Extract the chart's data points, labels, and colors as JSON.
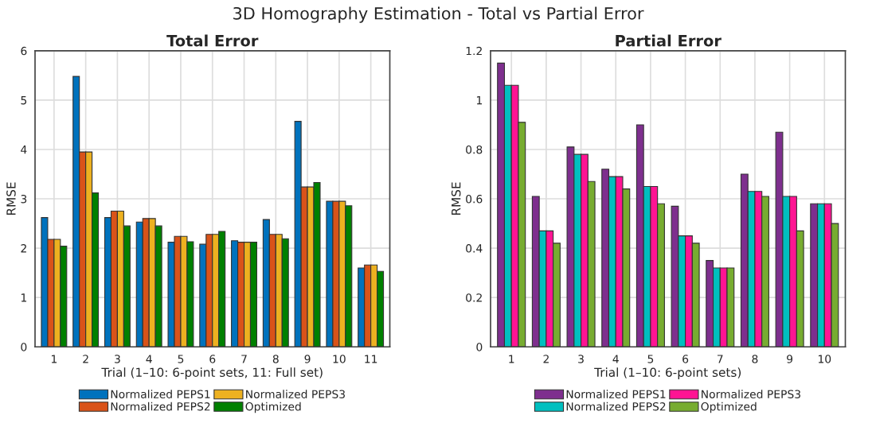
{
  "chart_data": [
    {
      "type": "bar",
      "title": "Total Error",
      "annotations": [
        "3D Homography Estimation - Total vs Partial Error"
      ],
      "xlabel": "Trial (1–10: 6-point sets, 11: Full set)",
      "ylabel": "RMSE",
      "categories": [
        "1",
        "2",
        "3",
        "4",
        "5",
        "6",
        "7",
        "8",
        "9",
        "10",
        "11"
      ],
      "series": [
        {
          "name": "Normalized PEPS1",
          "color": "#0072bd",
          "values": [
            2.62,
            5.48,
            2.62,
            2.53,
            2.12,
            2.08,
            2.15,
            2.58,
            4.57,
            2.95,
            1.6
          ]
        },
        {
          "name": "Normalized PEPS2",
          "color": "#d95319",
          "values": [
            2.18,
            3.95,
            2.75,
            2.6,
            2.24,
            2.28,
            2.12,
            2.28,
            3.24,
            2.95,
            1.66
          ]
        },
        {
          "name": "Normalized PEPS3",
          "color": "#edb120",
          "values": [
            2.18,
            3.95,
            2.75,
            2.6,
            2.24,
            2.28,
            2.12,
            2.28,
            3.24,
            2.95,
            1.66
          ]
        },
        {
          "name": "Optimized",
          "color": "#008000",
          "values": [
            2.04,
            3.12,
            2.45,
            2.45,
            2.13,
            2.34,
            2.12,
            2.19,
            3.33,
            2.86,
            1.53
          ]
        }
      ],
      "ylim": [
        0,
        6
      ],
      "yticks": [
        0,
        1,
        2,
        3,
        4,
        5,
        6
      ],
      "grid": true,
      "legend": "bottom"
    },
    {
      "type": "bar",
      "title": "Partial Error",
      "xlabel": "Trial (1–10: 6-point sets)",
      "ylabel": "RMSE",
      "categories": [
        "1",
        "2",
        "3",
        "4",
        "5",
        "6",
        "7",
        "8",
        "9",
        "10"
      ],
      "series": [
        {
          "name": "Normalized PEPS1",
          "color": "#7e2f8e",
          "values": [
            1.15,
            0.61,
            0.81,
            0.72,
            0.9,
            0.57,
            0.35,
            0.7,
            0.87,
            0.58
          ]
        },
        {
          "name": "Normalized PEPS2",
          "color": "#00bfbf",
          "values": [
            1.06,
            0.47,
            0.78,
            0.69,
            0.65,
            0.45,
            0.32,
            0.63,
            0.61,
            0.58
          ]
        },
        {
          "name": "Normalized PEPS3",
          "color": "#ff1493",
          "values": [
            1.06,
            0.47,
            0.78,
            0.69,
            0.65,
            0.45,
            0.32,
            0.63,
            0.61,
            0.58
          ]
        },
        {
          "name": "Optimized",
          "color": "#77ac30",
          "values": [
            0.91,
            0.42,
            0.67,
            0.64,
            0.58,
            0.42,
            0.32,
            0.61,
            0.47,
            0.5
          ]
        }
      ],
      "ylim": [
        0,
        1.2
      ],
      "yticks": [
        0,
        0.2,
        0.4,
        0.6,
        0.8,
        1,
        1.2
      ],
      "grid": true,
      "legend": "bottom"
    }
  ]
}
